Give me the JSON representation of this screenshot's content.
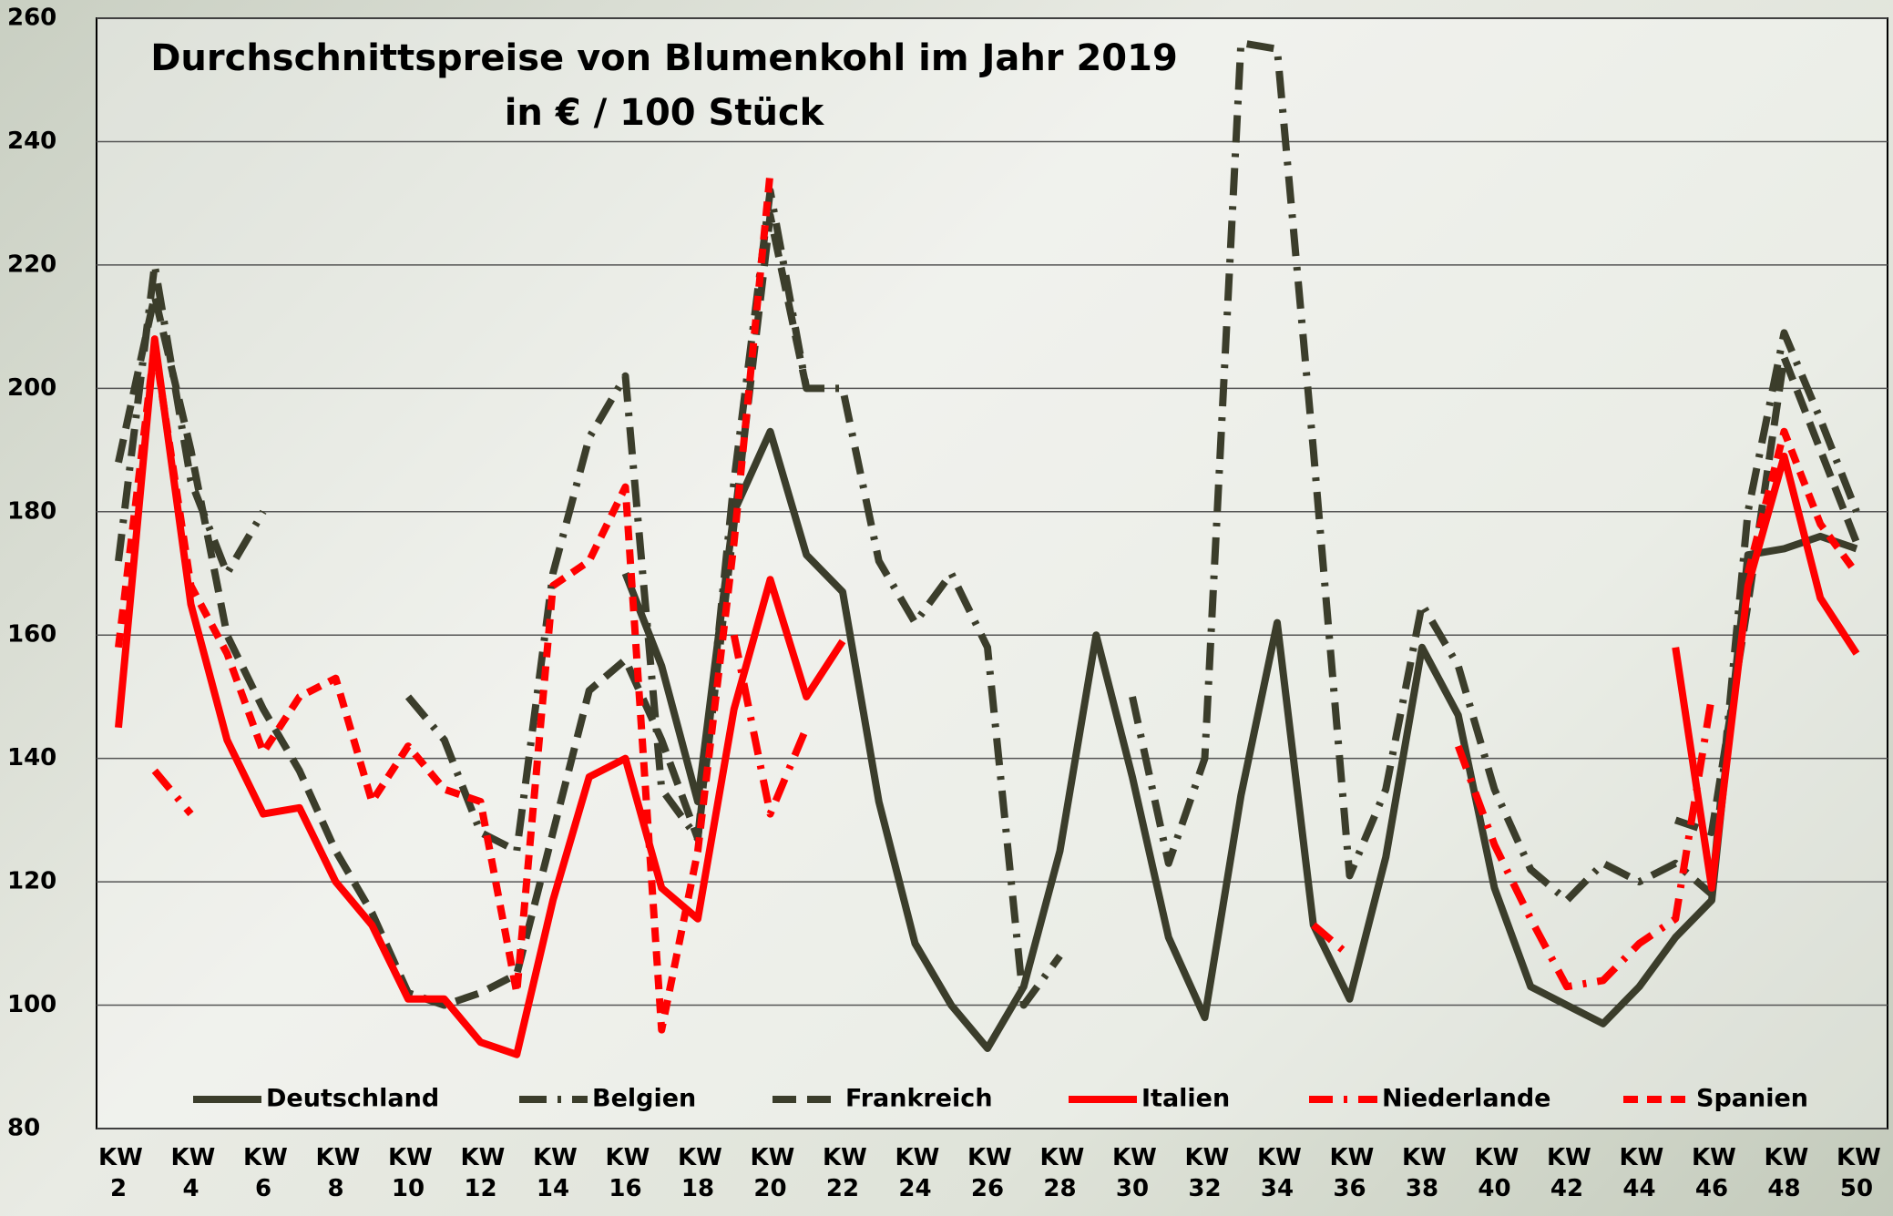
{
  "chart_data": {
    "type": "line",
    "title": "Durchschnittspreise von Blumenkohl im Jahr 2019",
    "subtitle": "in € / 100 Stück",
    "categories": [
      "KW 2",
      null,
      "KW 4",
      null,
      "KW 6",
      null,
      "KW 8",
      null,
      "KW 10",
      null,
      "KW 12",
      null,
      "KW 14",
      null,
      "KW 16",
      null,
      "KW 18",
      null,
      "KW 20",
      null,
      "KW 22",
      null,
      "KW 24",
      null,
      "KW 26",
      null,
      "KW 28",
      null,
      "KW 30",
      null,
      "KW 32",
      null,
      "KW 34",
      null,
      "KW 36",
      null,
      "KW 38",
      null,
      "KW 40",
      null,
      "KW 42",
      null,
      "KW 44",
      null,
      "KW 46",
      null,
      "KW 48",
      null,
      "KW 50"
    ],
    "ylim": [
      80,
      260
    ],
    "yticks": [
      80,
      100,
      120,
      140,
      160,
      180,
      200,
      220,
      240,
      260
    ],
    "grid": true,
    "series": [
      {
        "name": "Deutschland",
        "color": "#3b3d2b",
        "dash": "none",
        "values": [
          null,
          null,
          null,
          null,
          null,
          null,
          null,
          null,
          null,
          null,
          null,
          null,
          null,
          null,
          170,
          155,
          133,
          180,
          193,
          173,
          167,
          133,
          110,
          100,
          93,
          103,
          125,
          160,
          137,
          111,
          98,
          134,
          162,
          113,
          101,
          124,
          158,
          147,
          119,
          103,
          100,
          97,
          103,
          111,
          117,
          173,
          174,
          176,
          174
        ]
      },
      {
        "name": "Belgien",
        "color": "#3b3d2b",
        "dash": "30 12 4 12",
        "values": [
          172,
          220,
          185,
          170,
          180,
          null,
          null,
          null,
          150,
          143,
          128,
          125,
          170,
          192,
          202,
          135,
          127,
          185,
          232,
          200,
          200,
          172,
          162,
          170,
          158,
          100,
          108,
          null,
          150,
          123,
          140,
          256,
          255,
          190,
          121,
          135,
          165,
          155,
          135,
          122,
          117,
          123,
          120,
          123,
          118,
          180,
          209,
          195,
          180
        ]
      },
      {
        "name": "Frankreich",
        "color": "#3b3d2b",
        "dash": "26 12",
        "values": [
          188,
          215,
          190,
          160,
          148,
          138,
          125,
          115,
          102,
          100,
          102,
          105,
          128,
          151,
          156,
          143,
          127,
          178,
          228,
          200,
          null,
          null,
          null,
          null,
          null,
          null,
          null,
          null,
          null,
          null,
          null,
          null,
          null,
          null,
          null,
          null,
          null,
          null,
          null,
          null,
          null,
          null,
          null,
          130,
          128,
          165,
          205,
          190,
          175
        ]
      },
      {
        "name": "Italien",
        "color": "#ff0000",
        "dash": "none",
        "values": [
          145,
          208,
          165,
          143,
          131,
          132,
          120,
          113,
          101,
          101,
          94,
          92,
          117,
          137,
          140,
          119,
          114,
          148,
          169,
          150,
          159,
          null,
          null,
          null,
          null,
          null,
          null,
          null,
          null,
          null,
          null,
          null,
          null,
          null,
          null,
          null,
          null,
          null,
          null,
          null,
          null,
          null,
          null,
          158,
          119,
          168,
          189,
          166,
          157
        ]
      },
      {
        "name": "Niederlande",
        "color": "#ff0000",
        "dash": "26 12 4 12",
        "values": [
          null,
          138,
          131,
          null,
          null,
          null,
          null,
          null,
          null,
          null,
          null,
          null,
          null,
          null,
          null,
          null,
          null,
          160,
          131,
          145,
          null,
          null,
          null,
          null,
          null,
          null,
          null,
          null,
          null,
          null,
          null,
          null,
          null,
          113,
          108,
          null,
          null,
          142,
          126,
          114,
          103,
          104,
          110,
          114,
          150,
          null,
          null,
          null,
          null
        ]
      },
      {
        "name": "Spanien",
        "color": "#ff0000",
        "dash": "16 10",
        "values": [
          158,
          207,
          168,
          157,
          141,
          150,
          153,
          133,
          142,
          135,
          133,
          102,
          168,
          172,
          184,
          96,
          125,
          175,
          235,
          null,
          null,
          null,
          null,
          null,
          null,
          null,
          null,
          null,
          null,
          null,
          null,
          null,
          null,
          null,
          null,
          null,
          null,
          null,
          null,
          null,
          null,
          null,
          null,
          null,
          null,
          170,
          193,
          178,
          170
        ]
      }
    ]
  }
}
